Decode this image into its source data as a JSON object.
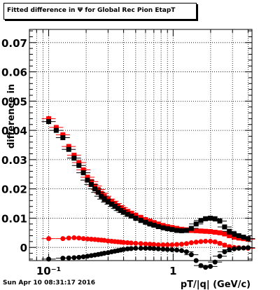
{
  "title": "Fitted difference in  Ψ  for Global Rec Pion EtapT",
  "date_stamp": "Sun Apr 10 08:31:17 2016",
  "colors": {
    "series_a": "#ff0000",
    "series_b": "#000000",
    "grid": "#000000",
    "frame": "#000000"
  },
  "chart_data": {
    "type": "scatter",
    "title": "Fitted difference in  Ψ  for Global Rec Pion EtapT",
    "xlabel": "pT/|q| (GeV/c)",
    "ylabel": "difference in",
    "x_scale": "log",
    "xlim": [
      0.07,
      4.3
    ],
    "ylim": [
      -0.0045,
      0.0745
    ],
    "grid": true,
    "legend": "none",
    "x_tick_labels": [
      {
        "value": 0.1,
        "label": "10⁻¹"
      },
      {
        "value": 1,
        "label": "1"
      }
    ],
    "y_tick_labels": [
      {
        "value": 0,
        "label": "0"
      },
      {
        "value": 0.01,
        "label": "0.01"
      },
      {
        "value": 0.02,
        "label": "0.02"
      },
      {
        "value": 0.03,
        "label": "0.03"
      },
      {
        "value": 0.04,
        "label": "0.04"
      },
      {
        "value": 0.05,
        "label": "0.05"
      },
      {
        "value": 0.06,
        "label": "0.06"
      },
      {
        "value": 0.07,
        "label": "0.07"
      }
    ],
    "series": [
      {
        "marker": "square",
        "color": "#ff0000",
        "points": [
          [
            0.1,
            0.044
          ],
          [
            0.115,
            0.041
          ],
          [
            0.13,
            0.0385
          ],
          [
            0.145,
            0.0345
          ],
          [
            0.16,
            0.0315
          ],
          [
            0.175,
            0.029
          ],
          [
            0.19,
            0.0265
          ],
          [
            0.205,
            0.024
          ],
          [
            0.22,
            0.0225
          ],
          [
            0.235,
            0.021
          ],
          [
            0.25,
            0.0198
          ],
          [
            0.265,
            0.0185
          ],
          [
            0.28,
            0.0175
          ],
          [
            0.3,
            0.0165
          ],
          [
            0.32,
            0.0158
          ],
          [
            0.34,
            0.015
          ],
          [
            0.36,
            0.0143
          ],
          [
            0.38,
            0.0136
          ],
          [
            0.4,
            0.013
          ],
          [
            0.43,
            0.0123
          ],
          [
            0.46,
            0.0117
          ],
          [
            0.5,
            0.011
          ],
          [
            0.55,
            0.0102
          ],
          [
            0.6,
            0.0095
          ],
          [
            0.65,
            0.009
          ],
          [
            0.7,
            0.0085
          ],
          [
            0.76,
            0.008
          ],
          [
            0.83,
            0.0075
          ],
          [
            0.9,
            0.0071
          ],
          [
            0.98,
            0.0068
          ],
          [
            1.07,
            0.0065
          ],
          [
            1.17,
            0.0062
          ],
          [
            1.28,
            0.006
          ],
          [
            1.4,
            0.0058
          ],
          [
            1.53,
            0.0057
          ],
          [
            1.67,
            0.0056
          ],
          [
            1.82,
            0.0055
          ],
          [
            1.99,
            0.0054
          ],
          [
            2.17,
            0.0052
          ],
          [
            2.37,
            0.005
          ],
          [
            2.59,
            0.0046
          ],
          [
            2.83,
            0.004
          ],
          [
            3.09,
            0.0035
          ],
          [
            3.37,
            0.0032
          ],
          [
            3.68,
            0.003
          ],
          [
            4.0,
            0.0028
          ]
        ]
      },
      {
        "marker": "square",
        "color": "#000000",
        "points": [
          [
            0.1,
            0.043
          ],
          [
            0.115,
            0.04
          ],
          [
            0.13,
            0.0375
          ],
          [
            0.145,
            0.0335
          ],
          [
            0.16,
            0.0305
          ],
          [
            0.175,
            0.028
          ],
          [
            0.19,
            0.0255
          ],
          [
            0.205,
            0.023
          ],
          [
            0.22,
            0.0215
          ],
          [
            0.235,
            0.02
          ],
          [
            0.25,
            0.0188
          ],
          [
            0.265,
            0.0175
          ],
          [
            0.28,
            0.0165
          ],
          [
            0.3,
            0.0155
          ],
          [
            0.32,
            0.0148
          ],
          [
            0.34,
            0.014
          ],
          [
            0.36,
            0.0133
          ],
          [
            0.38,
            0.0126
          ],
          [
            0.4,
            0.012
          ],
          [
            0.43,
            0.0113
          ],
          [
            0.46,
            0.0107
          ],
          [
            0.5,
            0.01
          ],
          [
            0.55,
            0.0092
          ],
          [
            0.6,
            0.0086
          ],
          [
            0.65,
            0.008
          ],
          [
            0.7,
            0.0076
          ],
          [
            0.76,
            0.0071
          ],
          [
            0.83,
            0.0067
          ],
          [
            0.9,
            0.0064
          ],
          [
            0.98,
            0.0061
          ],
          [
            1.07,
            0.0058
          ],
          [
            1.17,
            0.0057
          ],
          [
            1.28,
            0.0058
          ],
          [
            1.4,
            0.0065
          ],
          [
            1.53,
            0.008
          ],
          [
            1.67,
            0.0092
          ],
          [
            1.82,
            0.0098
          ],
          [
            1.99,
            0.01
          ],
          [
            2.17,
            0.0098
          ],
          [
            2.37,
            0.009
          ],
          [
            2.59,
            0.007
          ],
          [
            2.83,
            0.0055
          ],
          [
            3.09,
            0.0045
          ],
          [
            3.37,
            0.004
          ],
          [
            3.68,
            0.0035
          ],
          [
            4.0,
            0.003
          ]
        ]
      },
      {
        "marker": "circle",
        "color": "#ff0000",
        "points": [
          [
            0.1,
            0.003
          ],
          [
            0.13,
            0.003
          ],
          [
            0.145,
            0.0032
          ],
          [
            0.16,
            0.0033
          ],
          [
            0.175,
            0.0032
          ],
          [
            0.19,
            0.003
          ],
          [
            0.205,
            0.0029
          ],
          [
            0.22,
            0.0028
          ],
          [
            0.235,
            0.0027
          ],
          [
            0.25,
            0.0026
          ],
          [
            0.265,
            0.0025
          ],
          [
            0.28,
            0.0024
          ],
          [
            0.3,
            0.0022
          ],
          [
            0.32,
            0.0021
          ],
          [
            0.34,
            0.002
          ],
          [
            0.36,
            0.0019
          ],
          [
            0.38,
            0.0018
          ],
          [
            0.4,
            0.0017
          ],
          [
            0.43,
            0.0016
          ],
          [
            0.46,
            0.0015
          ],
          [
            0.5,
            0.0014
          ],
          [
            0.55,
            0.0013
          ],
          [
            0.6,
            0.0012
          ],
          [
            0.65,
            0.0011
          ],
          [
            0.7,
            0.001
          ],
          [
            0.76,
            0.0009
          ],
          [
            0.83,
            0.0009
          ],
          [
            0.9,
            0.0009
          ],
          [
            0.98,
            0.0009
          ],
          [
            1.07,
            0.001
          ],
          [
            1.17,
            0.0011
          ],
          [
            1.28,
            0.0013
          ],
          [
            1.4,
            0.0016
          ],
          [
            1.53,
            0.0018
          ],
          [
            1.67,
            0.002
          ],
          [
            1.82,
            0.0021
          ],
          [
            1.99,
            0.0021
          ],
          [
            2.17,
            0.0019
          ],
          [
            2.37,
            0.0014
          ],
          [
            2.59,
            0.0008
          ],
          [
            2.83,
            0.0003
          ],
          [
            3.09,
            0.0
          ],
          [
            3.37,
            -0.0001
          ],
          [
            3.68,
            -0.0002
          ],
          [
            4.0,
            -0.0003
          ]
        ]
      },
      {
        "marker": "circle",
        "color": "#000000",
        "points": [
          [
            0.1,
            -0.004
          ],
          [
            0.13,
            -0.0037
          ],
          [
            0.145,
            -0.0036
          ],
          [
            0.16,
            -0.0035
          ],
          [
            0.175,
            -0.0034
          ],
          [
            0.19,
            -0.0032
          ],
          [
            0.205,
            -0.003
          ],
          [
            0.22,
            -0.0028
          ],
          [
            0.235,
            -0.0026
          ],
          [
            0.25,
            -0.0024
          ],
          [
            0.265,
            -0.0022
          ],
          [
            0.28,
            -0.002
          ],
          [
            0.3,
            -0.0018
          ],
          [
            0.32,
            -0.0015
          ],
          [
            0.34,
            -0.0013
          ],
          [
            0.36,
            -0.0011
          ],
          [
            0.38,
            -0.0009
          ],
          [
            0.4,
            -0.0007
          ],
          [
            0.43,
            -0.0005
          ],
          [
            0.46,
            -0.0004
          ],
          [
            0.5,
            -0.0003
          ],
          [
            0.55,
            -0.0003
          ],
          [
            0.6,
            -0.0003
          ],
          [
            0.65,
            -0.0003
          ],
          [
            0.7,
            -0.0004
          ],
          [
            0.76,
            -0.0005
          ],
          [
            0.83,
            -0.0006
          ],
          [
            0.9,
            -0.0007
          ],
          [
            0.98,
            -0.0008
          ],
          [
            1.07,
            -0.0009
          ],
          [
            1.17,
            -0.0011
          ],
          [
            1.28,
            -0.0015
          ],
          [
            1.4,
            -0.0025
          ],
          [
            1.53,
            -0.0045
          ],
          [
            1.67,
            -0.0062
          ],
          [
            1.82,
            -0.0068
          ],
          [
            1.99,
            -0.0065
          ],
          [
            2.17,
            -0.005
          ],
          [
            2.37,
            -0.003
          ],
          [
            2.59,
            -0.0015
          ],
          [
            2.83,
            -0.0008
          ],
          [
            3.09,
            -0.0005
          ],
          [
            3.37,
            -0.0003
          ],
          [
            3.68,
            -0.0002
          ],
          [
            4.0,
            -0.0001
          ]
        ]
      }
    ]
  }
}
